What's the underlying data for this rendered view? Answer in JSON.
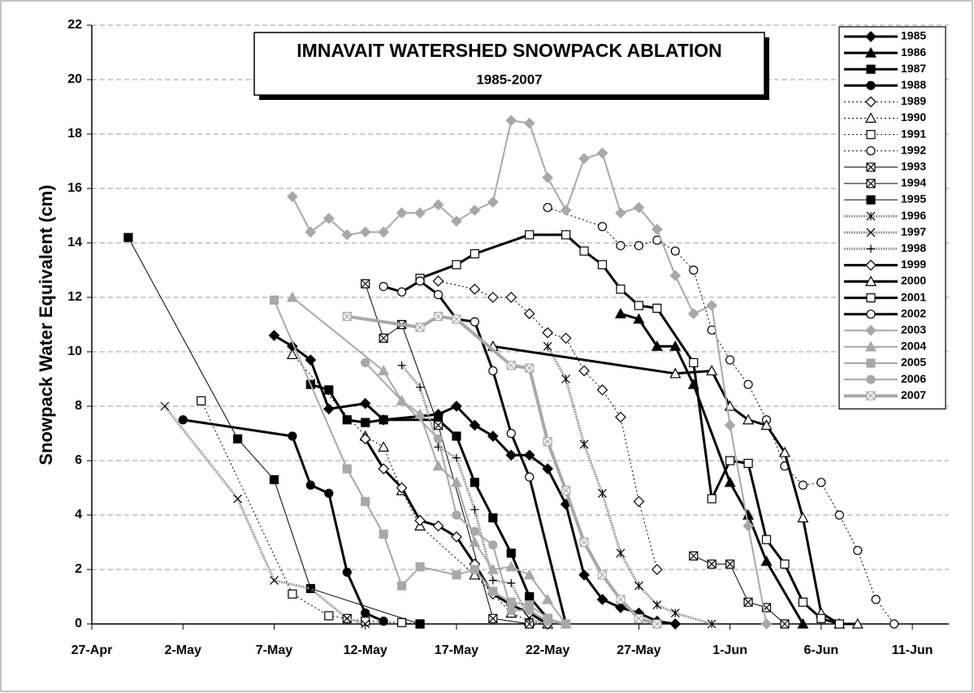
{
  "chart_data": {
    "type": "line",
    "title": "IMNAVAIT WATERSHED SNOWPACK ABLATION",
    "subtitle": "1985-2007",
    "y_label": "Snowpack Water Equivalent (cm)",
    "xlim": [
      117,
      164
    ],
    "ylim": [
      0,
      22
    ],
    "xticks": [
      {
        "value": 117,
        "label": "27-Apr"
      },
      {
        "value": 122,
        "label": "2-May"
      },
      {
        "value": 127,
        "label": "7-May"
      },
      {
        "value": 132,
        "label": "12-May"
      },
      {
        "value": 137,
        "label": "17-May"
      },
      {
        "value": 142,
        "label": "22-May"
      },
      {
        "value": 147,
        "label": "27-May"
      },
      {
        "value": 152,
        "label": "1-Jun"
      },
      {
        "value": 157,
        "label": "6-Jun"
      },
      {
        "value": 162,
        "label": "11-Jun"
      }
    ],
    "yticks": [
      0,
      2,
      4,
      6,
      8,
      10,
      12,
      14,
      16,
      18,
      20,
      22
    ],
    "grid": true,
    "legend": "top-right",
    "series": [
      {
        "name": "1985",
        "color": "#000000",
        "width": 3,
        "dash": "none",
        "marker": "diamond",
        "marker_fill": "#000000",
        "x": [
          127,
          128,
          129,
          130,
          132,
          133,
          136,
          137,
          138,
          139,
          140,
          141,
          142,
          143,
          144,
          145,
          146,
          147,
          148,
          149
        ],
        "values": [
          10.6,
          10.2,
          9.7,
          7.9,
          8.1,
          7.5,
          7.7,
          8.0,
          7.3,
          6.9,
          6.2,
          6.2,
          5.7,
          4.4,
          1.8,
          0.9,
          0.6,
          0.4,
          0.1,
          0
        ]
      },
      {
        "name": "1986",
        "color": "#000000",
        "width": 3,
        "dash": "none",
        "marker": "triangle",
        "marker_fill": "#000000",
        "x": [
          146,
          147,
          148,
          149,
          150,
          152,
          153,
          154,
          156
        ],
        "values": [
          11.4,
          11.2,
          10.2,
          10.2,
          8.8,
          5.2,
          4.0,
          2.3,
          0
        ]
      },
      {
        "name": "1987",
        "color": "#000000",
        "width": 3,
        "dash": "none",
        "marker": "square",
        "marker_fill": "#000000",
        "x": [
          129,
          130,
          131,
          132,
          133,
          136,
          137,
          138,
          139,
          140,
          141,
          142
        ],
        "values": [
          8.8,
          8.6,
          7.5,
          7.4,
          7.5,
          7.5,
          6.9,
          5.2,
          3.9,
          2.6,
          1.0,
          0.2
        ]
      },
      {
        "name": "1988",
        "color": "#000000",
        "width": 3,
        "dash": "none",
        "marker": "circle",
        "marker_fill": "#000000",
        "x": [
          122,
          128,
          129,
          130,
          131,
          132,
          133
        ],
        "values": [
          7.5,
          6.9,
          5.1,
          4.8,
          1.9,
          0.4,
          0.1
        ]
      },
      {
        "name": "1989",
        "color": "#000000",
        "width": 1,
        "dash": "2,3",
        "marker": "diamond",
        "marker_fill": "#ffffff",
        "x": [
          136,
          138,
          139,
          140,
          141,
          142,
          143,
          144,
          145,
          146,
          147,
          148
        ],
        "values": [
          12.6,
          12.3,
          12.0,
          12.0,
          11.4,
          10.7,
          10.5,
          9.3,
          8.6,
          7.6,
          4.5,
          2.0
        ]
      },
      {
        "name": "1990",
        "color": "#000000",
        "width": 1,
        "dash": "2,3",
        "marker": "triangle",
        "marker_fill": "#ffffff",
        "x": [
          128,
          132,
          133,
          134,
          135,
          138,
          140,
          141,
          142
        ],
        "values": [
          9.9,
          6.9,
          6.5,
          4.9,
          3.6,
          1.8,
          0.4,
          0.1,
          0
        ]
      },
      {
        "name": "1991",
        "color": "#000000",
        "width": 1,
        "dash": "2,3",
        "marker": "square",
        "marker_fill": "#ffffff",
        "x": [
          123,
          128,
          130,
          131,
          132,
          134,
          135
        ],
        "values": [
          8.2,
          1.1,
          0.3,
          0.2,
          0.1,
          0.05,
          0
        ]
      },
      {
        "name": "1992",
        "color": "#000000",
        "width": 1,
        "dash": "2,3",
        "marker": "circle",
        "marker_fill": "#ffffff",
        "x": [
          142,
          145,
          146,
          147,
          148,
          149,
          150,
          151,
          152,
          153,
          154,
          155,
          156,
          157,
          158,
          159,
          160,
          161
        ],
        "values": [
          15.3,
          14.6,
          13.9,
          13.9,
          14.1,
          13.7,
          13.0,
          10.8,
          9.7,
          8.8,
          7.5,
          5.8,
          5.1,
          5.2,
          4.0,
          2.7,
          0.9,
          0
        ]
      },
      {
        "name": "1993",
        "color": "#000000",
        "width": 1,
        "dash": "none",
        "marker": "xsquare",
        "marker_fill": "#ffffff",
        "x": [
          150,
          151,
          152,
          153,
          154,
          155
        ],
        "values": [
          2.5,
          2.2,
          2.2,
          0.8,
          0.6,
          0
        ]
      },
      {
        "name": "1994",
        "color": "#000000",
        "width": 1,
        "dash": "none",
        "marker": "xsquare",
        "marker_fill": "#ffffff",
        "x": [
          132,
          133,
          134,
          136,
          139,
          141
        ],
        "values": [
          12.5,
          10.5,
          11.0,
          7.3,
          0.2,
          0
        ]
      },
      {
        "name": "1995",
        "color": "#000000",
        "width": 1,
        "dash": "none",
        "marker": "plussquare",
        "marker_fill": "#000000",
        "x": [
          119,
          125,
          127,
          129,
          135
        ],
        "values": [
          14.2,
          6.8,
          5.3,
          1.3,
          0
        ]
      },
      {
        "name": "1996",
        "color": "#a0a0a0",
        "width": 3,
        "dash": "2,1",
        "marker": "asterisk",
        "marker_fill": "#000000",
        "x": [
          142,
          143,
          144,
          145,
          146,
          147,
          148,
          149,
          151
        ],
        "values": [
          10.2,
          9.0,
          6.6,
          4.8,
          2.6,
          1.4,
          0.7,
          0.4,
          0
        ]
      },
      {
        "name": "1997",
        "color": "#a0a0a0",
        "width": 3,
        "dash": "2,1",
        "marker": "x",
        "marker_fill": "#000000",
        "x": [
          121,
          125,
          127,
          129,
          131,
          132
        ],
        "values": [
          8.0,
          4.6,
          1.6,
          1.3,
          0.2,
          0
        ]
      },
      {
        "name": "1998",
        "color": "#a0a0a0",
        "width": 3,
        "dash": "2,1",
        "marker": "plus",
        "marker_fill": "#000000",
        "x": [
          134,
          135,
          136,
          137,
          138,
          139,
          140,
          141,
          142
        ],
        "values": [
          9.5,
          8.7,
          6.5,
          6.1,
          4.2,
          1.6,
          1.5,
          0.2,
          0
        ]
      },
      {
        "name": "1999",
        "color": "#000000",
        "width": 3,
        "dash": "none",
        "marker": "diamond",
        "marker_fill": "#ffffff",
        "x": [
          132,
          133,
          134,
          135,
          136,
          137,
          138,
          139,
          140,
          141,
          142
        ],
        "values": [
          6.8,
          5.7,
          5.0,
          3.8,
          3.6,
          3.2,
          2.2,
          1.1,
          0.7,
          0.4,
          0
        ]
      },
      {
        "name": "2000",
        "color": "#000000",
        "width": 3,
        "dash": "none",
        "marker": "triangle",
        "marker_fill": "#ffffff",
        "x": [
          139,
          149,
          151,
          152,
          153,
          154,
          155,
          156,
          157,
          158,
          159
        ],
        "values": [
          10.2,
          9.2,
          9.3,
          8.0,
          7.5,
          7.3,
          6.3,
          3.9,
          0.4,
          0,
          0
        ]
      },
      {
        "name": "2001",
        "color": "#000000",
        "width": 3,
        "dash": "none",
        "marker": "square",
        "marker_fill": "#ffffff",
        "x": [
          135,
          137,
          138,
          141,
          143,
          144,
          145,
          146,
          147,
          148,
          150,
          151,
          152,
          153,
          154,
          155,
          156,
          157,
          158
        ],
        "values": [
          12.7,
          13.2,
          13.6,
          14.3,
          14.3,
          13.7,
          13.2,
          12.3,
          11.7,
          11.6,
          9.6,
          4.6,
          6.0,
          5.9,
          3.1,
          2.2,
          0.8,
          0.2,
          0
        ]
      },
      {
        "name": "2002",
        "color": "#000000",
        "width": 3,
        "dash": "none",
        "marker": "circle",
        "marker_fill": "#ffffff",
        "x": [
          133,
          134,
          135,
          136,
          137,
          138,
          139,
          140,
          141,
          143
        ],
        "values": [
          12.4,
          12.2,
          12.6,
          12.1,
          11.2,
          11.1,
          9.3,
          7.0,
          5.4,
          0
        ]
      },
      {
        "name": "2003",
        "color": "#a8a8a8",
        "width": 2,
        "dash": "none",
        "marker": "diamond",
        "marker_fill": "#a8a8a8",
        "x": [
          128,
          129,
          130,
          131,
          132,
          133,
          134,
          135,
          136,
          137,
          138,
          139,
          140,
          141,
          142,
          143,
          144,
          145,
          146,
          147,
          148,
          149,
          150,
          151,
          152,
          153,
          154
        ],
        "values": [
          15.7,
          14.4,
          14.9,
          14.3,
          14.4,
          14.4,
          15.1,
          15.1,
          15.4,
          14.8,
          15.2,
          15.5,
          18.5,
          18.4,
          16.4,
          15.2,
          17.1,
          17.3,
          15.1,
          15.3,
          14.5,
          12.8,
          11.4,
          11.7,
          7.3,
          3.6,
          0
        ]
      },
      {
        "name": "2004",
        "color": "#a8a8a8",
        "width": 2,
        "dash": "none",
        "marker": "triangle",
        "marker_fill": "#a8a8a8",
        "x": [
          128,
          133,
          134,
          135,
          136,
          137,
          138,
          139,
          140,
          141,
          142,
          143
        ],
        "values": [
          12.0,
          9.3,
          8.2,
          7.7,
          5.8,
          5.2,
          3.0,
          2.0,
          2.1,
          1.8,
          0.9,
          0
        ]
      },
      {
        "name": "2005",
        "color": "#a8a8a8",
        "width": 2,
        "dash": "none",
        "marker": "square",
        "marker_fill": "#a8a8a8",
        "x": [
          127,
          131,
          132,
          133,
          134,
          135,
          137,
          138,
          139,
          140,
          141,
          142,
          143
        ],
        "values": [
          11.9,
          5.7,
          4.5,
          3.3,
          1.4,
          2.1,
          1.8,
          2.0,
          1.2,
          0.8,
          0.7,
          0.2,
          0
        ]
      },
      {
        "name": "2006",
        "color": "#a8a8a8",
        "width": 2,
        "dash": "none",
        "marker": "circle",
        "marker_fill": "#a8a8a8",
        "x": [
          132,
          136,
          137,
          138,
          139,
          140,
          141,
          142,
          143
        ],
        "values": [
          9.6,
          6.8,
          4.0,
          3.4,
          2.9,
          0.5,
          0.5,
          0.1,
          0
        ]
      },
      {
        "name": "2007",
        "color": "#a8a8a8",
        "width": 4,
        "dash": "none",
        "marker": "xsquare",
        "marker_fill": "#a8a8a8",
        "x": [
          131,
          135,
          136,
          137,
          140,
          141,
          142,
          143,
          144,
          145,
          146,
          147,
          148
        ],
        "values": [
          11.3,
          10.9,
          11.3,
          11.2,
          9.5,
          9.4,
          6.7,
          4.9,
          3.0,
          1.8,
          0.9,
          0.2,
          0
        ]
      }
    ]
  }
}
